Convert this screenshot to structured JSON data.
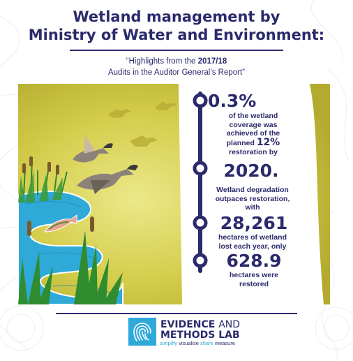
{
  "header": {
    "title_line1": "Wetland management by",
    "title_line2": "Ministry of Water and Environment:",
    "subtitle_prefix": "“Highlights from the ",
    "subtitle_year": "2017/18",
    "subtitle_line2": "Audits in the Auditor General’s Report”"
  },
  "facts": {
    "stat1": "0.3%",
    "text1_line1": "of the wetland",
    "text1_line2": "coverage was",
    "text1_line3": "achieved of the",
    "text1_line4_prefix": "planned",
    "stat_planned": "12%",
    "text1_line5": "restoration by",
    "stat2": "2020.",
    "text2_line1": "Wetland degradation",
    "text2_line2": "outpaces restoration,",
    "text2_line3": "with",
    "stat3": "28,261",
    "text3_line1": "hectares of wetland",
    "text3_line2": "lost each year, only",
    "stat4": "628.9",
    "text4_line1": "hectares were",
    "text4_line2": "restored"
  },
  "logo": {
    "name_part1": "EVIDENCE",
    "name_part2": "AND",
    "name_part3": "METHODS LAB",
    "tag_simplify": "simplify",
    "tag_visualise": "visualise",
    "tag_share": "share",
    "tag_measure": "measure"
  },
  "colors": {
    "navy": "#2b2a6c",
    "olive": "#c9c23c",
    "water": "#2fa9d8",
    "reed_green": "#2f8c2f"
  },
  "icons": [
    "timeline-node-icon",
    "goose-icon",
    "fish-icon",
    "cattail-icon",
    "fingerprint-icon"
  ]
}
